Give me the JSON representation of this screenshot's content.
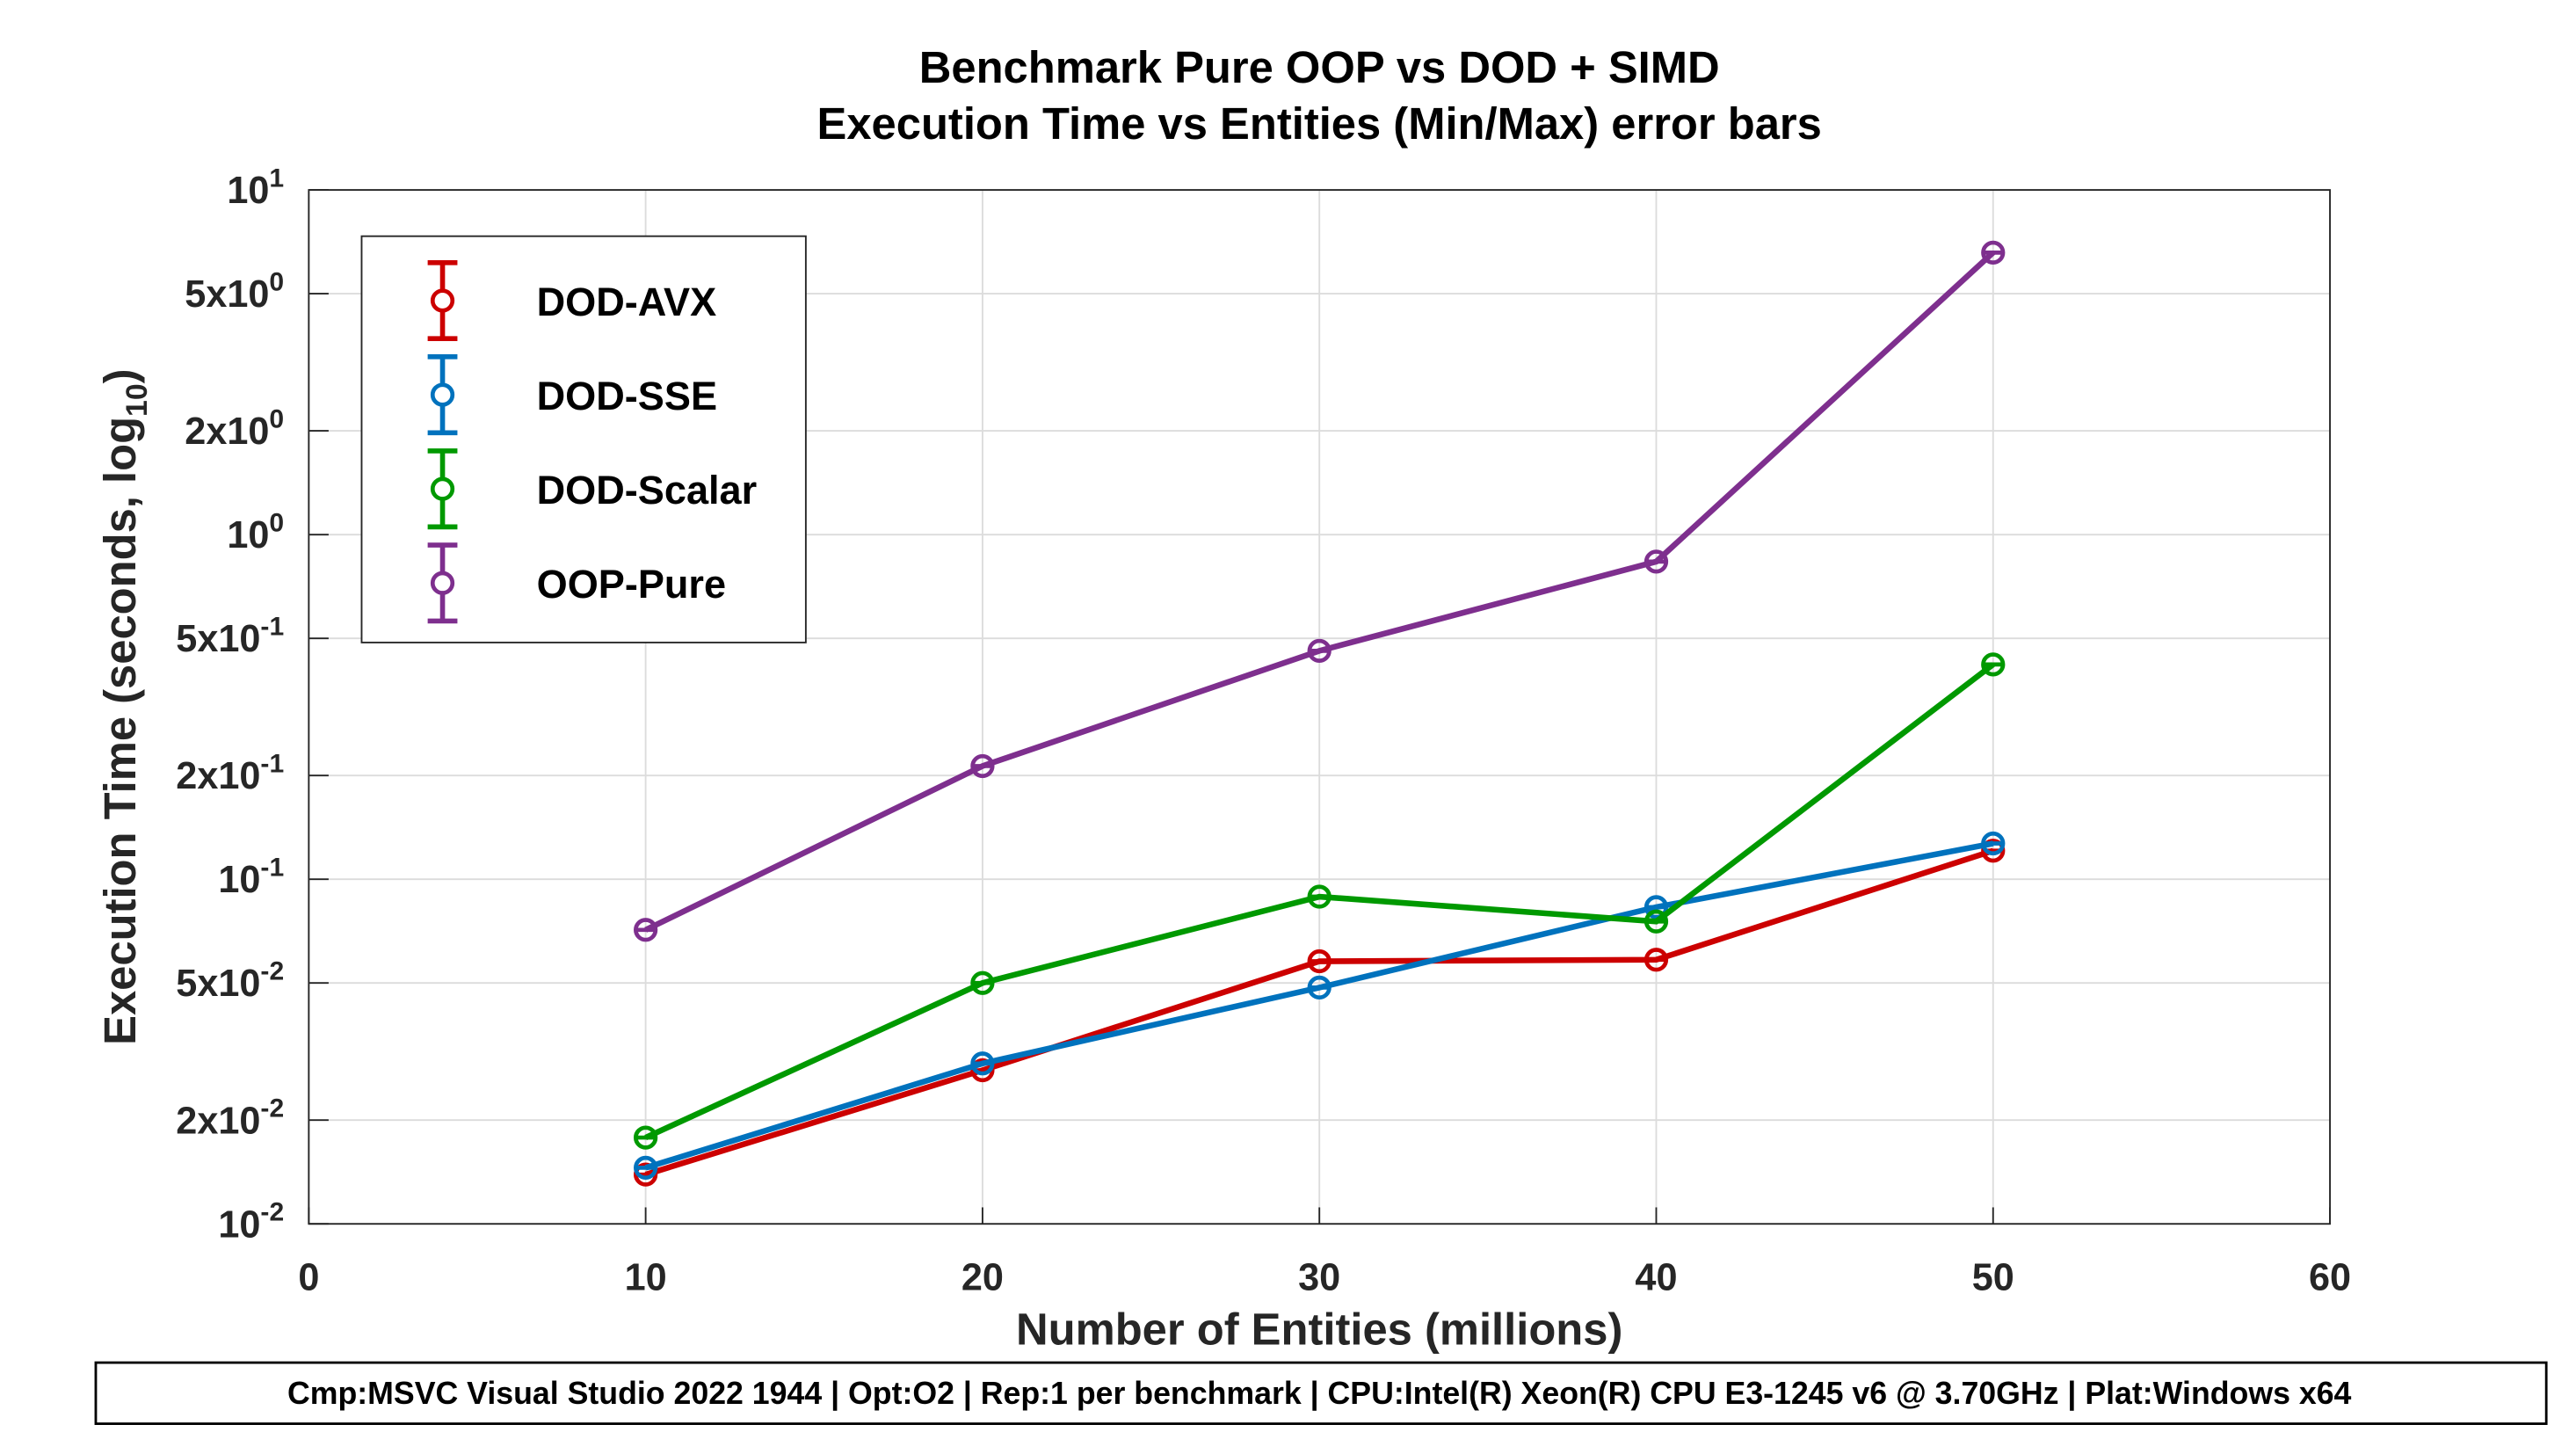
{
  "chart_data": {
    "type": "line",
    "title": [
      "Benchmark Pure OOP vs DOD + SIMD",
      "Execution Time vs Entities (Min/Max) error bars"
    ],
    "xlabel": "Number of Entities (millions)",
    "ylabel": {
      "text": "Execution Time (seconds, log",
      "subscript": "10",
      "close": ")"
    },
    "xlim": [
      0,
      60
    ],
    "ylim": [
      0.01,
      10
    ],
    "yscale": "log",
    "grid": true,
    "legend_placement": "top-left",
    "x_ticks": [
      "0",
      "10",
      "20",
      "30",
      "40",
      "50",
      "60"
    ],
    "y_ticks": [
      {
        "value": 10,
        "mantissa": "",
        "base": "10",
        "exp": "1"
      },
      {
        "value": 5,
        "mantissa": "5x",
        "base": "10",
        "exp": "0"
      },
      {
        "value": 2,
        "mantissa": "2x",
        "base": "10",
        "exp": "0"
      },
      {
        "value": 1,
        "mantissa": "",
        "base": "10",
        "exp": "0"
      },
      {
        "value": 0.5,
        "mantissa": "5x",
        "base": "10",
        "exp": "-1"
      },
      {
        "value": 0.2,
        "mantissa": "2x",
        "base": "10",
        "exp": "-1"
      },
      {
        "value": 0.1,
        "mantissa": "",
        "base": "10",
        "exp": "-1"
      },
      {
        "value": 0.05,
        "mantissa": "5x",
        "base": "10",
        "exp": "-2"
      },
      {
        "value": 0.02,
        "mantissa": "2x",
        "base": "10",
        "exp": "-2"
      },
      {
        "value": 0.01,
        "mantissa": "",
        "base": "10",
        "exp": "-2"
      }
    ],
    "x": [
      10,
      20,
      30,
      40,
      50
    ],
    "series": [
      {
        "name": "DOD-AVX",
        "color": "#cc0000",
        "values": [
          0.0139,
          0.0279,
          0.0578,
          0.0584,
          0.121
        ]
      },
      {
        "name": "DOD-SSE",
        "color": "#0072bd",
        "values": [
          0.01455,
          0.0292,
          0.0485,
          0.083,
          0.127
        ]
      },
      {
        "name": "DOD-Scalar",
        "color": "#009900",
        "values": [
          0.0178,
          0.05,
          0.089,
          0.0754,
          0.42
        ]
      },
      {
        "name": "OOP-Pure",
        "color": "#7e2f8e",
        "values": [
          0.0713,
          0.213,
          0.46,
          0.835,
          6.58
        ]
      }
    ]
  },
  "footer": "Cmp:MSVC Visual Studio 2022 1944 | Opt:O2 | Rep:1 per benchmark | CPU:Intel(R) Xeon(R) CPU E3-1245 v6 @ 3.70GHz | Plat:Windows x64"
}
